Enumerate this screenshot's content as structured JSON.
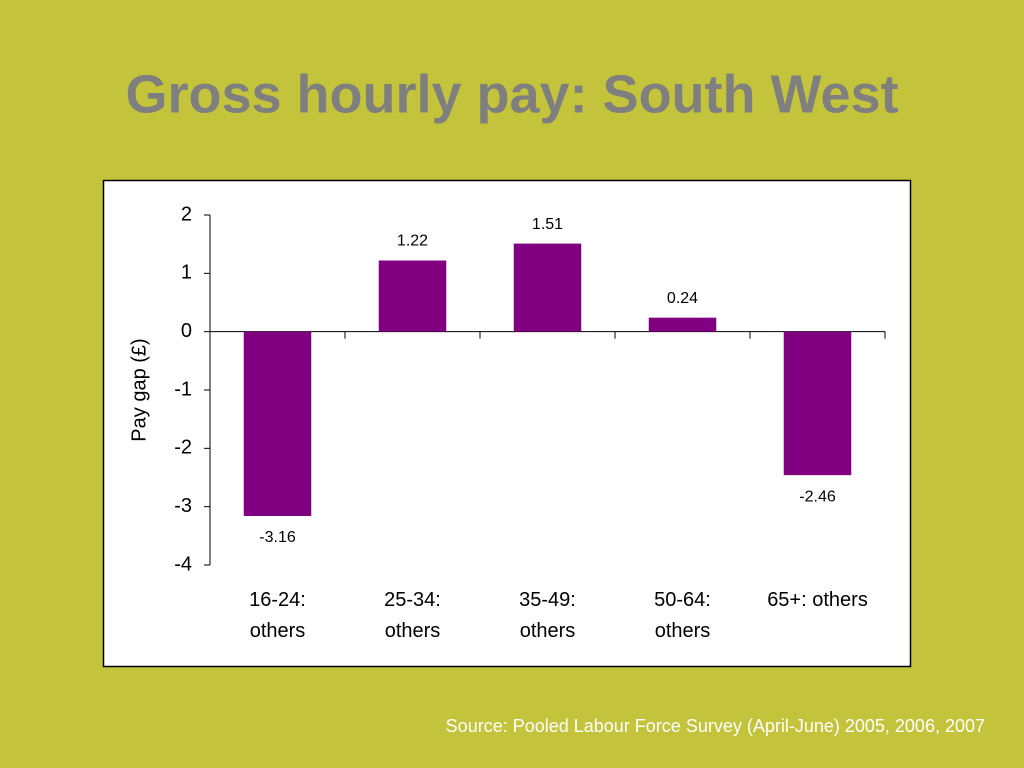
{
  "chart_data": {
    "type": "bar",
    "title": "Gross hourly pay: South West",
    "y_label": "Pay gap (£)",
    "categories": [
      "16-24: others",
      "25-34: others",
      "35-49: others",
      "50-64: others",
      "65+: others"
    ],
    "values": [
      -3.16,
      1.22,
      1.51,
      0.24,
      -2.46
    ],
    "color": "#800080",
    "ylim": [
      -4,
      2
    ],
    "yticks": [
      -4,
      -3,
      -2,
      -1,
      0,
      1,
      2
    ],
    "source": "Source: Pooled Labour Force Survey (April-June) 2005, 2006, 2007"
  }
}
